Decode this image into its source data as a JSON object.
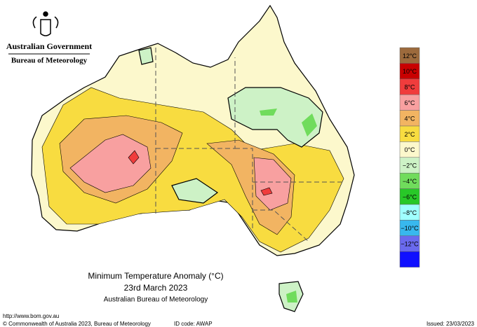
{
  "header": {
    "government": "Australian Government",
    "agency": "Bureau of Meteorology"
  },
  "title": {
    "line1": "Minimum Temperature Anomaly (°C)",
    "line2": "23rd March 2023",
    "line3": "Australian Bureau of Meteorology"
  },
  "legend": {
    "colors": [
      "#9c6a3c",
      "#c80000",
      "#f03c3c",
      "#f8a0a0",
      "#f2b462",
      "#f8dc40",
      "#fcf8cc",
      "#cdf2c6",
      "#70dc5c",
      "#28c828",
      "#a0ffff",
      "#38b8ee",
      "#6a6aee",
      "#1010ff"
    ],
    "labels": [
      "12°C",
      "10°C",
      "8°C",
      "6°C",
      "4°C",
      "2°C",
      "0°C",
      "−2°C",
      "−4°C",
      "−6°C",
      "−8°C",
      "−10°C",
      "−12°C"
    ]
  },
  "footer": {
    "url": "http://www.bom.gov.au",
    "copyright": "© Commonwealth of Australia 2023, Bureau of Meteorology",
    "id_code": "ID code: AWAP",
    "issued": "Issued: 23/03/2023"
  }
}
